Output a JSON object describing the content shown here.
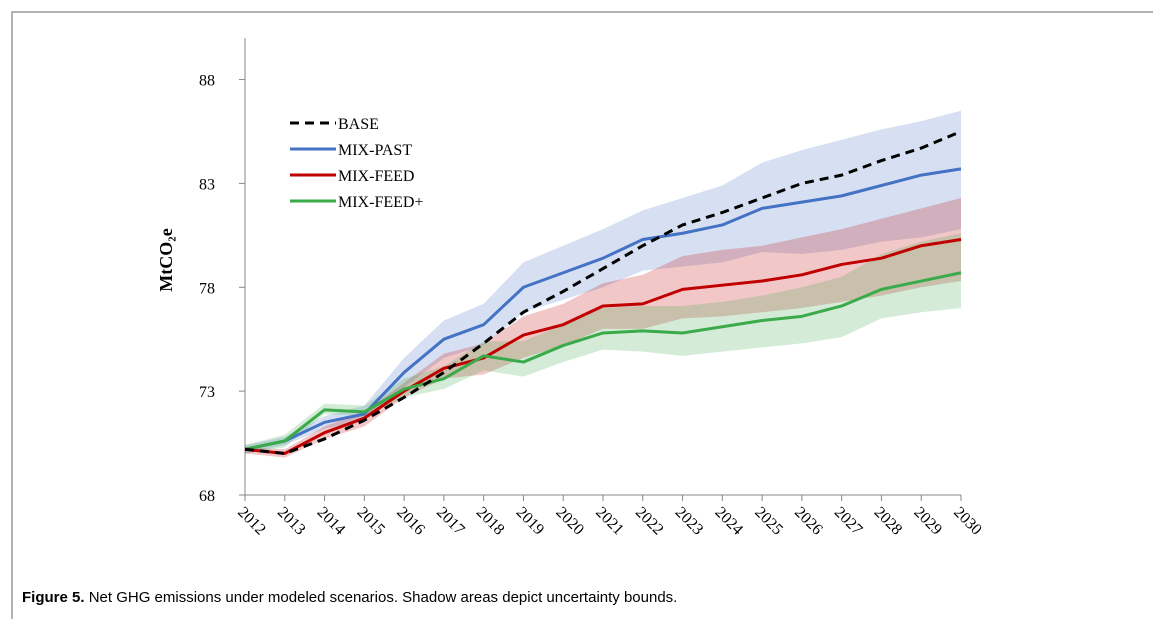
{
  "chart_data": {
    "type": "line",
    "y_label": "MtCO₂e",
    "caption_label": "Figure 5.",
    "caption": "Net GHG emissions under modeled scenarios. Shadow areas depict uncertainty bounds.",
    "categories": [
      "2012",
      "2013",
      "2014",
      "2015",
      "2016",
      "2017",
      "2018",
      "2019",
      "2020",
      "2021",
      "2022",
      "2023",
      "2024",
      "2025",
      "2026",
      "2027",
      "2028",
      "2029",
      "2030"
    ],
    "ylim": [
      68,
      90
    ],
    "yticks": [
      68,
      73,
      78,
      83,
      88
    ],
    "series": [
      {
        "name": "BASE",
        "color": "#000000",
        "dashed": true,
        "values": [
          70.2,
          70.0,
          70.7,
          71.6,
          72.7,
          73.9,
          75.3,
          76.8,
          77.8,
          78.9,
          80.0,
          81.0,
          81.6,
          82.3,
          83.0,
          83.4,
          84.1,
          84.7,
          85.5
        ]
      },
      {
        "name": "MIX-PAST",
        "color": "#4472c4",
        "dashed": false,
        "values": [
          70.2,
          70.6,
          71.5,
          71.9,
          73.9,
          75.5,
          76.2,
          78.0,
          78.7,
          79.4,
          80.3,
          80.6,
          81.0,
          81.8,
          82.1,
          82.4,
          82.9,
          83.4,
          83.7
        ],
        "band_upper": [
          70.4,
          70.8,
          71.8,
          72.3,
          74.6,
          76.4,
          77.2,
          79.2,
          80.0,
          80.8,
          81.7,
          82.3,
          82.9,
          84.0,
          84.6,
          85.1,
          85.6,
          86.0,
          86.5
        ],
        "band_lower": [
          70.0,
          70.4,
          71.2,
          71.6,
          73.2,
          74.6,
          75.2,
          76.8,
          77.4,
          78.0,
          78.8,
          79.0,
          79.2,
          79.7,
          79.6,
          79.8,
          80.2,
          80.4,
          80.8
        ]
      },
      {
        "name": "MIX-FEED",
        "color": "#c00000",
        "dashed": false,
        "values": [
          70.2,
          70.0,
          71.0,
          71.7,
          73.0,
          74.1,
          74.6,
          75.7,
          76.2,
          77.1,
          77.2,
          77.9,
          78.1,
          78.3,
          78.6,
          79.1,
          79.4,
          80.0,
          80.3
        ],
        "band_upper": [
          70.3,
          70.2,
          71.3,
          72.0,
          73.4,
          74.8,
          75.3,
          76.6,
          77.2,
          78.2,
          78.6,
          79.5,
          79.8,
          80.0,
          80.4,
          80.8,
          81.3,
          81.8,
          82.3
        ],
        "band_lower": [
          70.0,
          69.8,
          70.7,
          71.3,
          72.7,
          73.6,
          73.8,
          74.6,
          75.2,
          76.0,
          76.0,
          76.5,
          76.6,
          76.8,
          77.0,
          77.3,
          77.6,
          78.0,
          78.3
        ]
      },
      {
        "name": "MIX-FEED+",
        "color": "#3aaa4a",
        "dashed": false,
        "values": [
          70.2,
          70.6,
          72.1,
          72.0,
          73.1,
          73.6,
          74.7,
          74.4,
          75.2,
          75.8,
          75.9,
          75.8,
          76.1,
          76.4,
          76.6,
          77.1,
          77.9,
          78.3,
          78.7
        ],
        "band_upper": [
          70.4,
          70.9,
          72.4,
          72.3,
          73.6,
          74.2,
          75.4,
          75.4,
          76.2,
          77.0,
          77.1,
          77.1,
          77.3,
          77.6,
          78.0,
          78.5,
          79.6,
          80.2,
          80.6
        ],
        "band_lower": [
          70.0,
          70.3,
          71.9,
          71.8,
          72.7,
          73.1,
          74.0,
          73.7,
          74.4,
          75.0,
          74.9,
          74.7,
          74.9,
          75.1,
          75.3,
          75.6,
          76.5,
          76.8,
          77.0
        ]
      }
    ]
  }
}
